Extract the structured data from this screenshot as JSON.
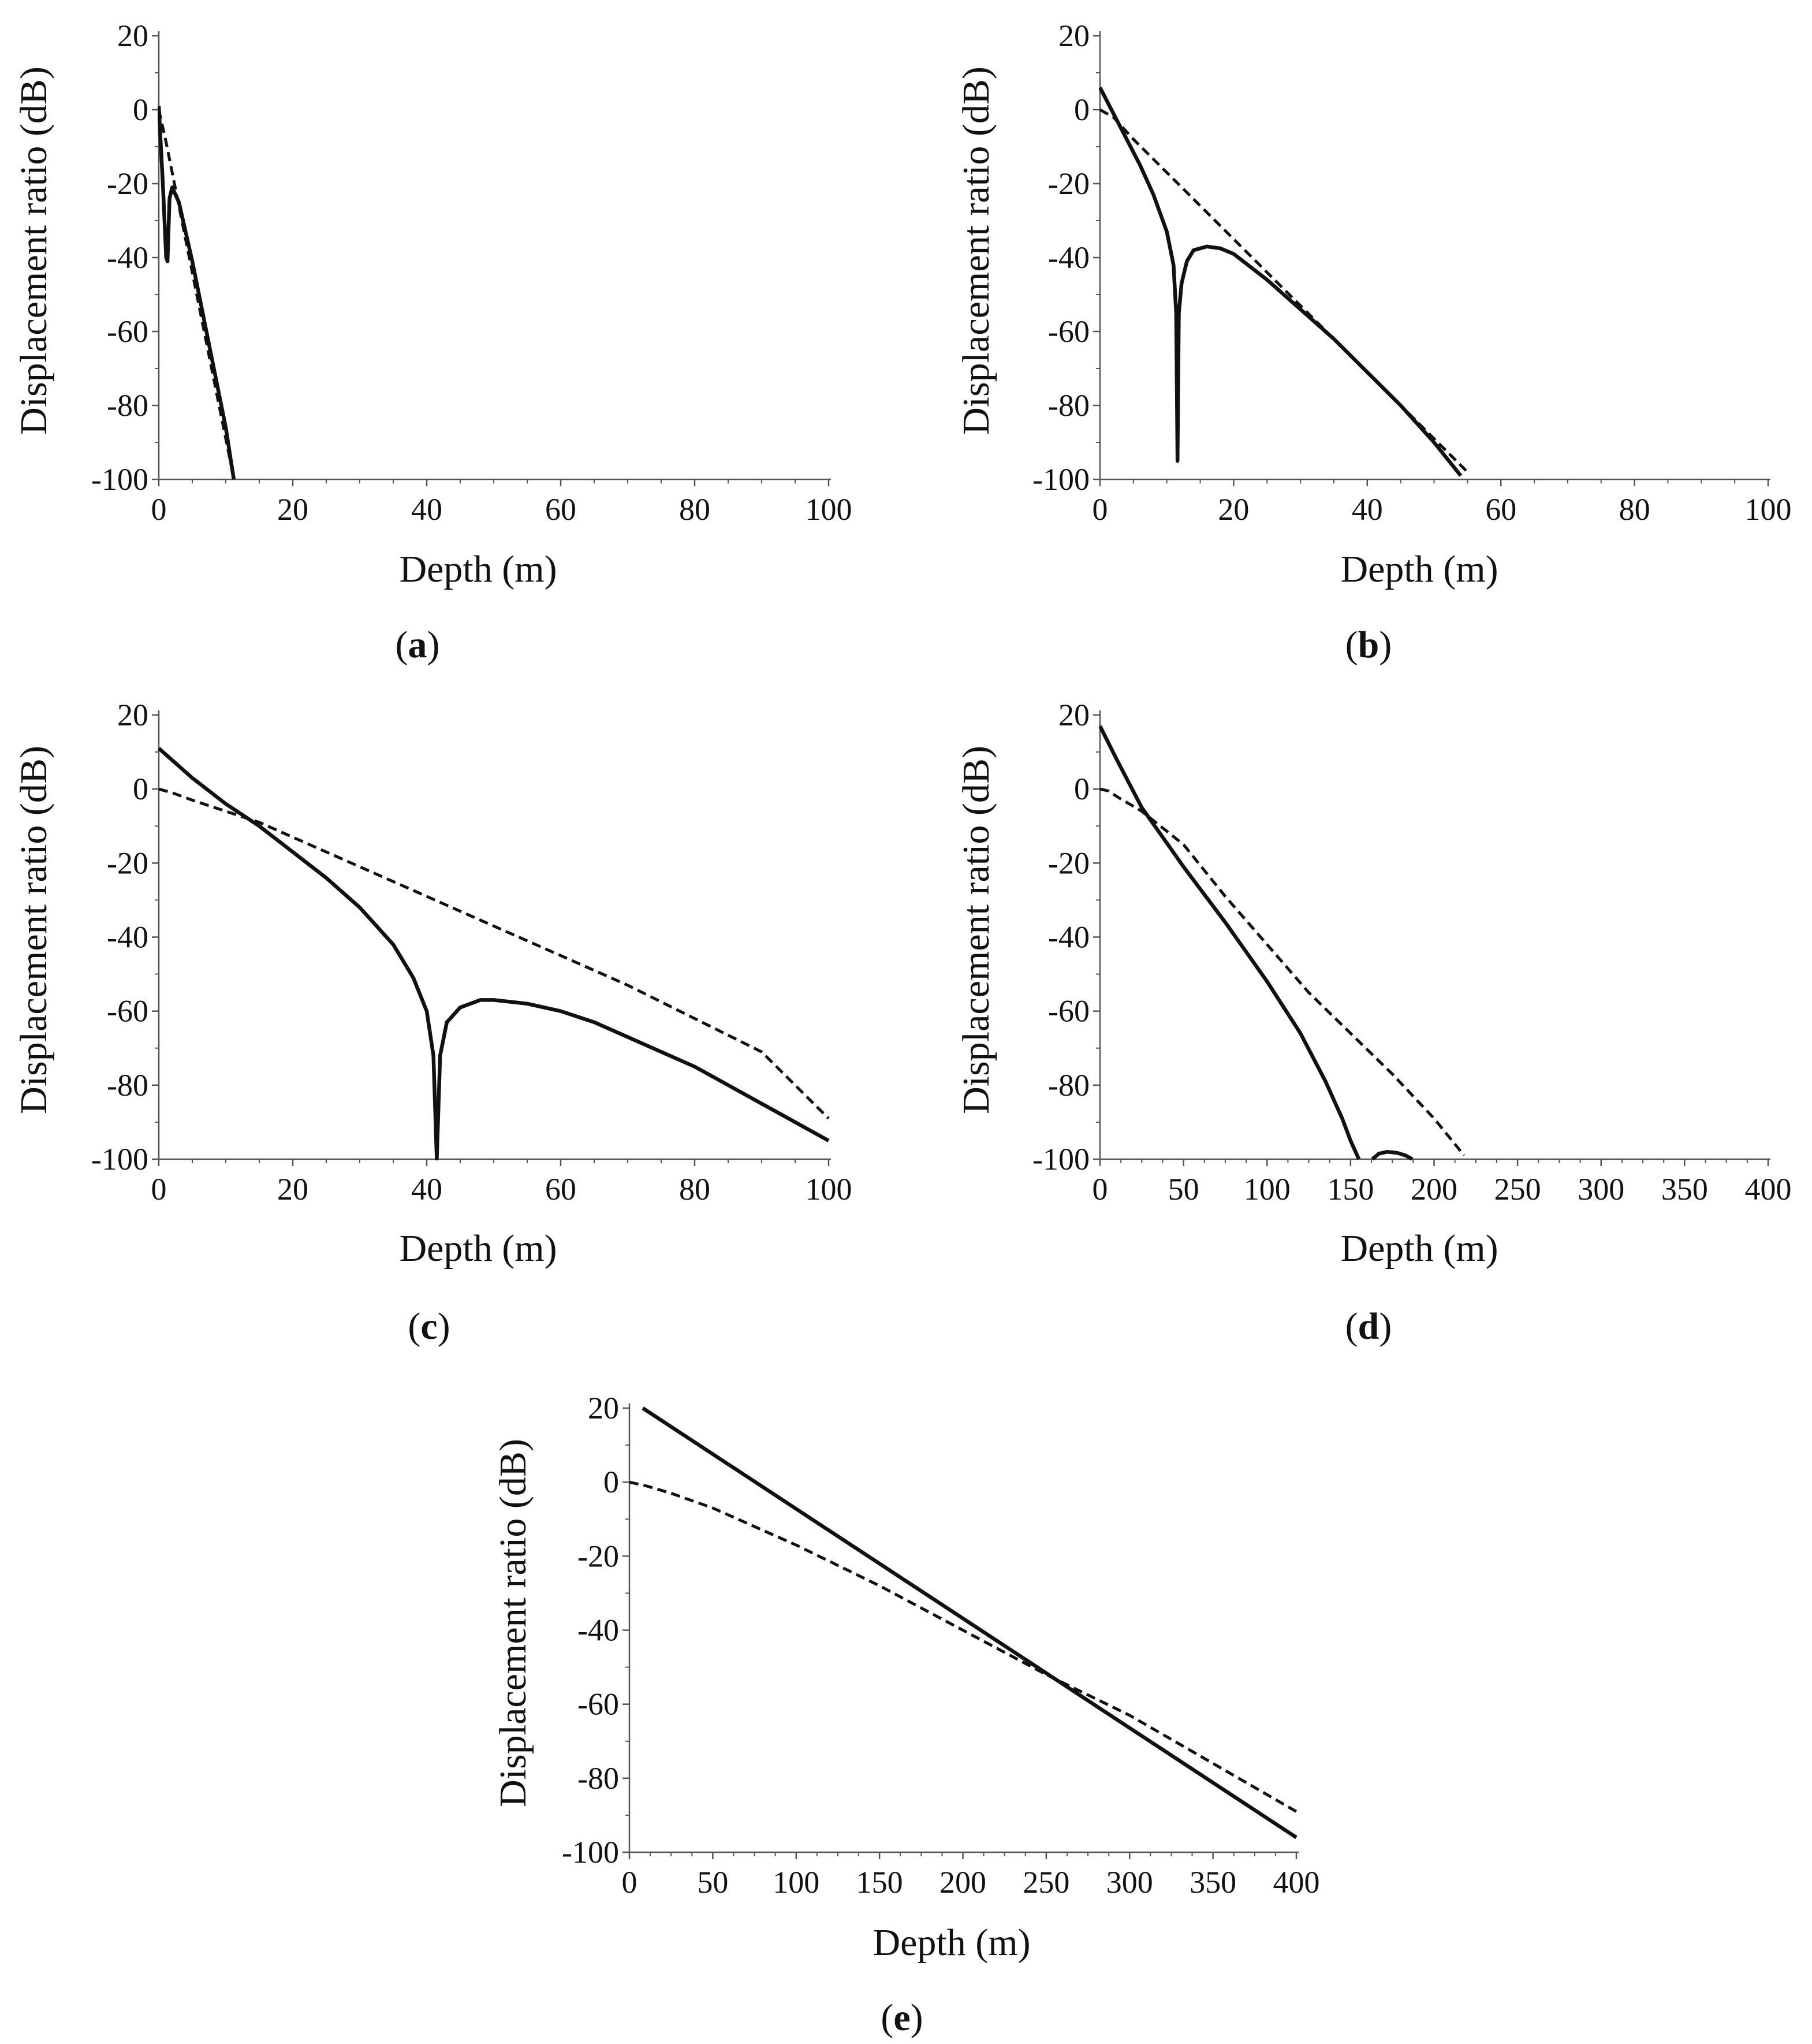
{
  "figure": {
    "caption_open": "(",
    "caption_close": ")"
  },
  "chart_data": [
    {
      "id": "a",
      "type": "line",
      "label": "a",
      "xlabel": "Depth (m)",
      "ylabel": "Displacement ratio (dB)",
      "xlim": [
        0,
        100
      ],
      "ylim": [
        -100,
        20
      ],
      "xticks": [
        0,
        20,
        40,
        60,
        80,
        100
      ],
      "yticks": [
        20,
        0,
        -20,
        -40,
        -60,
        -80,
        -100
      ],
      "series": [
        {
          "name": "solid",
          "style": "solid",
          "x": [
            0,
            0.6,
            1.1,
            1.3,
            1.6,
            2,
            3,
            4,
            5,
            6,
            7,
            8,
            9,
            10,
            11.2
          ],
          "y": [
            1,
            -20,
            -40,
            -41,
            -24,
            -21,
            -25,
            -33,
            -41,
            -50,
            -59,
            -68,
            -77,
            -86,
            -100
          ]
        },
        {
          "name": "dashed",
          "style": "dashed",
          "x": [
            0,
            1,
            2,
            3,
            4,
            5,
            6,
            7,
            8,
            9,
            10,
            11
          ],
          "y": [
            0,
            -8,
            -17,
            -26,
            -35,
            -44,
            -53,
            -62,
            -71,
            -80,
            -89,
            -98
          ]
        }
      ]
    },
    {
      "id": "b",
      "type": "line",
      "label": "b",
      "xlabel": "Depth (m)",
      "ylabel": "Displacement ratio (dB)",
      "xlim": [
        0,
        100
      ],
      "ylim": [
        -100,
        20
      ],
      "xticks": [
        0,
        20,
        40,
        60,
        80,
        100
      ],
      "yticks": [
        20,
        0,
        -20,
        -40,
        -60,
        -80,
        -100
      ],
      "series": [
        {
          "name": "solid",
          "style": "solid",
          "x": [
            0,
            2,
            4,
            6,
            8,
            10,
            11,
            11.4,
            11.6,
            11.8,
            12.2,
            13,
            14,
            16,
            18,
            20,
            25,
            30,
            35,
            40,
            45,
            50,
            54
          ],
          "y": [
            6,
            -1,
            -8,
            -15,
            -23,
            -33,
            -42,
            -55,
            -95,
            -55,
            -47,
            -41,
            -38,
            -37,
            -37.5,
            -39,
            -46,
            -54,
            -62,
            -71,
            -80,
            -90,
            -99
          ]
        },
        {
          "name": "dashed",
          "style": "dashed",
          "x": [
            0,
            2,
            5,
            10,
            15,
            20,
            25,
            30,
            35,
            40,
            45,
            50,
            55
          ],
          "y": [
            0,
            -2,
            -8,
            -17,
            -26,
            -35,
            -44,
            -53,
            -62,
            -71,
            -80,
            -89,
            -98
          ]
        }
      ]
    },
    {
      "id": "c",
      "type": "line",
      "label": "c",
      "xlabel": "Depth (m)",
      "ylabel": "Displacement ratio (dB)",
      "xlim": [
        0,
        100
      ],
      "ylim": [
        -100,
        20
      ],
      "xticks": [
        0,
        20,
        40,
        60,
        80,
        100
      ],
      "yticks": [
        20,
        0,
        -20,
        -40,
        -60,
        -80,
        -100
      ],
      "series": [
        {
          "name": "solid",
          "style": "solid",
          "x": [
            0,
            5,
            10,
            15,
            20,
            25,
            30,
            35,
            38,
            40,
            41,
            41.5,
            42,
            43,
            45,
            48,
            50,
            55,
            60,
            65,
            70,
            75,
            80,
            85,
            90,
            95,
            100
          ],
          "y": [
            11,
            3,
            -4,
            -10,
            -17,
            -24,
            -32,
            -42,
            -51,
            -60,
            -72,
            -100,
            -72,
            -63,
            -59,
            -57,
            -57,
            -58,
            -60,
            -63,
            -67,
            -71,
            -75,
            -80,
            -85,
            -90,
            -95
          ]
        },
        {
          "name": "dashed",
          "style": "dashed",
          "x": [
            0,
            2,
            5,
            10,
            15,
            20,
            30,
            40,
            50,
            60,
            70,
            80,
            90,
            100
          ],
          "y": [
            0,
            -1,
            -3,
            -6,
            -9,
            -13,
            -21,
            -29,
            -37,
            -45,
            -53,
            -62,
            -71,
            -89
          ]
        }
      ]
    },
    {
      "id": "d",
      "type": "line",
      "label": "d",
      "xlabel": "Depth (m)",
      "ylabel": "Displacement ratio (dB)",
      "xlim": [
        0,
        400
      ],
      "ylim": [
        -100,
        20
      ],
      "xticks": [
        0,
        50,
        100,
        150,
        200,
        250,
        300,
        350,
        400
      ],
      "yticks": [
        20,
        0,
        -20,
        -40,
        -60,
        -80,
        -100
      ],
      "series": [
        {
          "name": "solid",
          "style": "solid",
          "x": [
            0,
            10,
            25,
            50,
            75,
            100,
            120,
            135,
            145,
            150,
            155
          ],
          "y": [
            17,
            8,
            -5,
            -21,
            -36,
            -52,
            -66,
            -79,
            -89,
            -95,
            -100
          ]
        },
        {
          "name": "solid-tail",
          "style": "solid",
          "x": [
            163,
            167,
            172,
            178,
            183,
            187
          ],
          "y": [
            -100,
            -98.5,
            -98,
            -98.3,
            -99,
            -100
          ]
        },
        {
          "name": "dashed",
          "style": "dashed",
          "x": [
            0,
            5,
            10,
            25,
            50,
            75,
            100,
            125,
            150,
            175,
            200,
            218
          ],
          "y": [
            0,
            -0.5,
            -2,
            -6,
            -15,
            -29,
            -42,
            -55,
            -66,
            -77,
            -89,
            -99
          ]
        }
      ]
    },
    {
      "id": "e",
      "type": "line",
      "label": "e",
      "xlabel": "Depth (m)",
      "ylabel": "Displacement ratio (dB)",
      "xlim": [
        0,
        400
      ],
      "ylim": [
        -100,
        20
      ],
      "xticks": [
        0,
        50,
        100,
        150,
        200,
        250,
        300,
        350,
        400
      ],
      "yticks": [
        20,
        0,
        -20,
        -40,
        -60,
        -80,
        -100
      ],
      "series": [
        {
          "name": "solid",
          "style": "solid",
          "x": [
            8,
            400
          ],
          "y": [
            20,
            -96
          ]
        },
        {
          "name": "dashed",
          "style": "dashed",
          "x": [
            0,
            10,
            25,
            50,
            75,
            100,
            150,
            200,
            250,
            300,
            350,
            400
          ],
          "y": [
            0,
            -1,
            -3,
            -7,
            -12,
            -17,
            -28,
            -40,
            -52,
            -63,
            -76,
            -89
          ]
        }
      ]
    }
  ]
}
